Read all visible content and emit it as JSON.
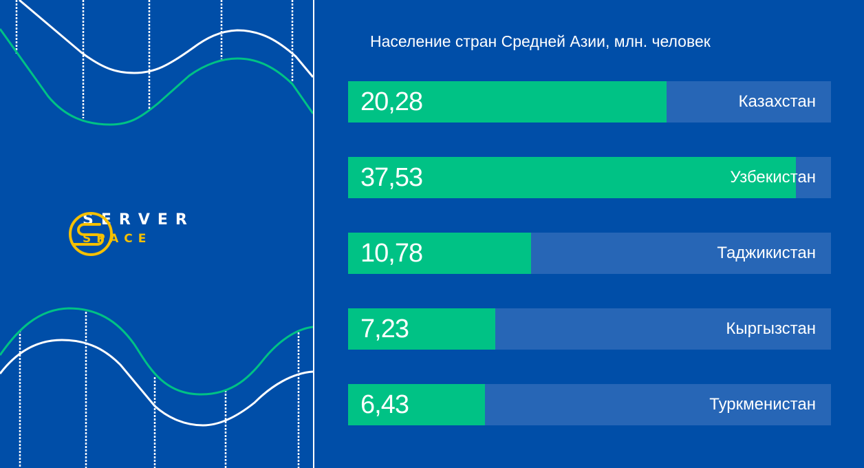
{
  "brand": {
    "line1": "SERVER",
    "line2": "SPACE",
    "icon": "server-space-logo-icon"
  },
  "colors": {
    "background": "#004ea8",
    "bar_track": "#2766b6",
    "bar_fill": "#00c285",
    "accent_yellow": "#f5c000",
    "wave_green": "#00c285",
    "wave_white": "#ffffff"
  },
  "chart": {
    "title": "Население стран Средней Азии, млн. человек",
    "rows": [
      {
        "value": "20,28",
        "label": "Казахстан",
        "fill_pct": 65.95
      },
      {
        "value": "37,53",
        "label": "Узбекистан",
        "fill_pct": 92.74
      },
      {
        "value": "10,78",
        "label": "Таджикистан",
        "fill_pct": 37.89
      },
      {
        "value": "7,23",
        "label": "Кыргызстан",
        "fill_pct": 30.48
      },
      {
        "value": "6,43",
        "label": "Туркменистан",
        "fill_pct": 28.35
      }
    ]
  },
  "chart_data": {
    "type": "bar",
    "orientation": "horizontal",
    "title": "Население стран Средней Азии, млн. человек",
    "categories": [
      "Казахстан",
      "Узбекистан",
      "Таджикистан",
      "Кыргызстан",
      "Туркменистан"
    ],
    "values": [
      20.28,
      37.53,
      10.78,
      7.23,
      6.43
    ],
    "data_labels": [
      "20,28",
      "37,53",
      "10,78",
      "7,23",
      "6,43"
    ],
    "xlabel": "",
    "ylabel": "",
    "grid": false,
    "legend": null
  }
}
